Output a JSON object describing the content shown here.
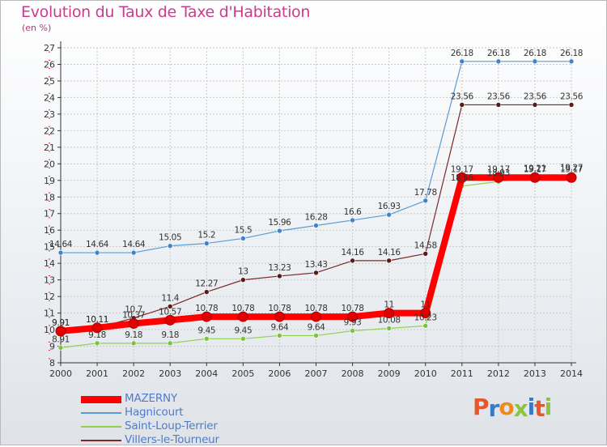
{
  "title": "Evolution du Taux de Taxe d'Habitation",
  "subtitle": "(en %)",
  "logo": [
    "P",
    "r",
    "o",
    "x",
    "i",
    "t",
    "i"
  ],
  "logo_colors": [
    "#e8562a",
    "#3a79c4",
    "#f08a1e",
    "#8bc53f",
    "#3a79c4",
    "#e8562a",
    "#8bc53f"
  ],
  "colors": {
    "grid": "#c9c9c9",
    "axis": "#333333",
    "tick_red": "#e0203a"
  },
  "chart_data": {
    "type": "line",
    "xlabel": "",
    "ylabel": "",
    "x": [
      "2000",
      "2001",
      "2002",
      "2003",
      "2004",
      "2005",
      "2006",
      "2007",
      "2008",
      "2009",
      "2010",
      "2011",
      "2012",
      "2013",
      "2014"
    ],
    "ylim": [
      8,
      27
    ],
    "yticks": [
      8,
      9,
      10,
      11,
      12,
      13,
      14,
      15,
      16,
      17,
      18,
      19,
      20,
      21,
      22,
      23,
      24,
      25,
      26,
      27
    ],
    "grid": true,
    "legend_placement": "bottom-left",
    "series": [
      {
        "name": "Hagnicourt",
        "color": "#5b9bd5",
        "marker": "#3f84c8",
        "values": [
          14.64,
          14.64,
          14.64,
          15.05,
          15.2,
          15.5,
          15.96,
          16.28,
          16.6,
          16.93,
          17.78,
          26.18,
          26.18,
          26.18,
          26.18
        ],
        "labels": [
          "14.64",
          "14.64",
          "14.64",
          "15.05",
          "15.2",
          "15.5",
          "15.96",
          "16.28",
          "16.6",
          "16.93",
          "17.78",
          "26.18",
          "26.18",
          "26.18",
          "26.18"
        ]
      },
      {
        "name": "Villers-le-Tourneur",
        "color": "#7a2a2a",
        "marker": "#5a1a1a",
        "values": [
          9.91,
          10.11,
          10.7,
          11.4,
          12.27,
          13,
          13.23,
          13.43,
          14.16,
          14.16,
          14.58,
          23.56,
          23.56,
          23.56,
          23.56
        ],
        "labels": [
          "9.91",
          "10.11",
          "10.7",
          "11.4",
          "12.27",
          "13",
          "13.23",
          "13.43",
          "14.16",
          "14.16",
          "14.58",
          "23.56",
          "23.56",
          "23.56",
          "23.56"
        ]
      },
      {
        "name": "Saint-Loup-Terrier",
        "color": "#8fd14f",
        "marker": "#7cc242",
        "values": [
          8.91,
          9.18,
          9.18,
          9.18,
          9.45,
          9.45,
          9.64,
          9.64,
          9.93,
          10.08,
          10.23,
          18.66,
          18.93,
          19.21,
          19.27
        ],
        "labels": [
          "8.91",
          "9.18",
          "9.18",
          "9.18",
          "9.45",
          "9.45",
          "9.64",
          "9.64",
          "9.93",
          "10.08",
          "10.23",
          "18.66",
          "18.93",
          "19.21",
          "19.27"
        ]
      },
      {
        "name": "MAZERNY",
        "color": "#ff0000",
        "marker": "#e00000",
        "values": [
          9.91,
          10.11,
          10.37,
          10.57,
          10.78,
          10.78,
          10.78,
          10.78,
          10.78,
          11,
          11,
          19.17,
          19.17,
          19.17,
          19.17
        ],
        "labels": [
          "9.91",
          "10.11",
          "10.37",
          "10.57",
          "10.78",
          "10.78",
          "10.78",
          "10.78",
          "10.78",
          "11",
          "11",
          "19.17",
          "19.17",
          "19.17",
          "19.17"
        ]
      }
    ],
    "legend": [
      "MAZERNY",
      "Hagnicourt",
      "Saint-Loup-Terrier",
      "Villers-le-Tourneur"
    ]
  }
}
